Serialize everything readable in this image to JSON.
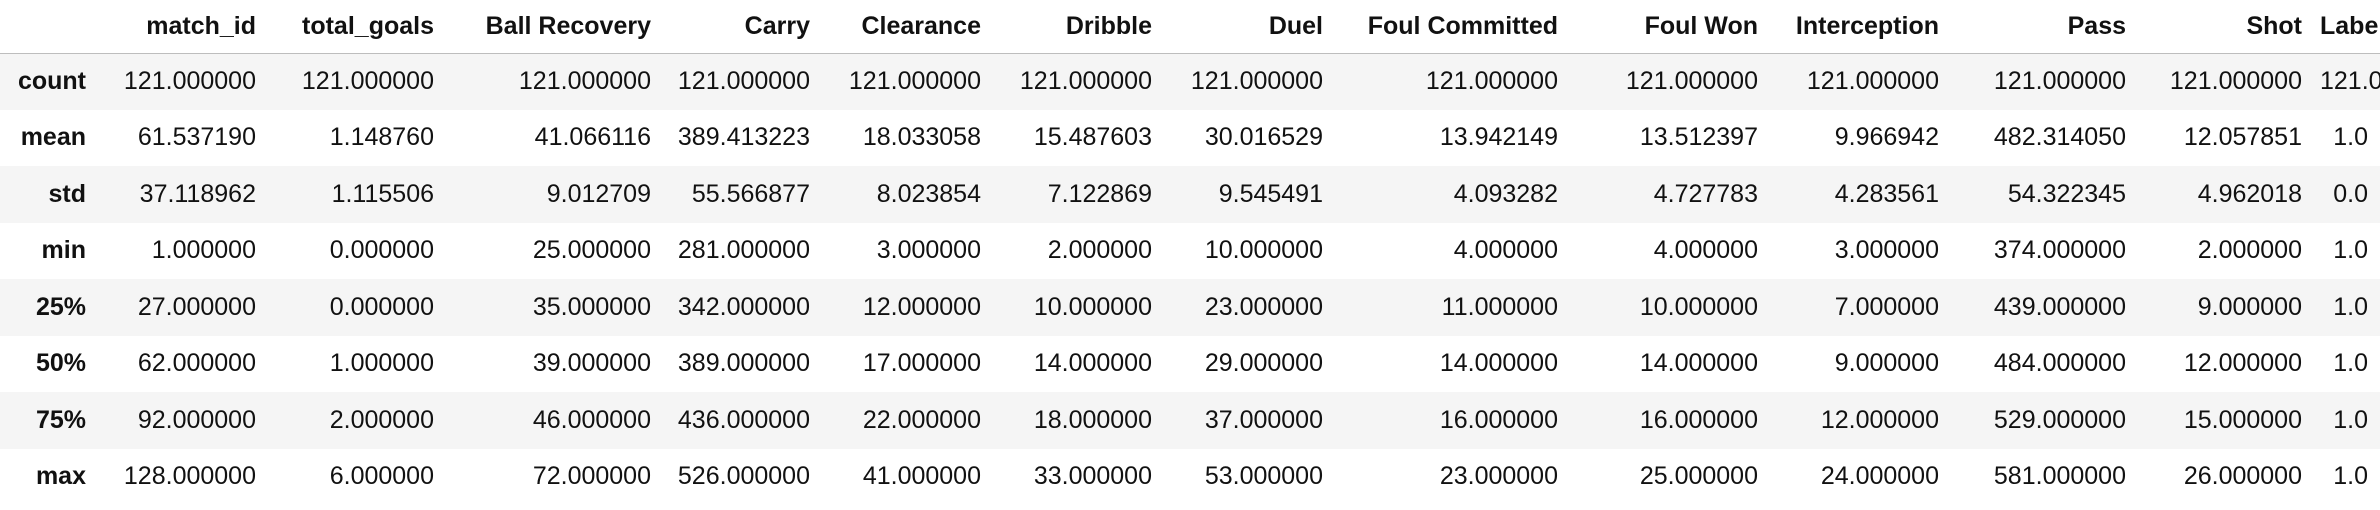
{
  "table": {
    "columns": [
      "match_id",
      "total_goals",
      "Ball Recovery",
      "Carry",
      "Clearance",
      "Dribble",
      "Duel",
      "Foul Committed",
      "Foul Won",
      "Interception",
      "Pass",
      "Shot",
      "Labels"
    ],
    "rows": [
      {
        "label": "count",
        "values": [
          "121.000000",
          "121.000000",
          "121.000000",
          "121.000000",
          "121.000000",
          "121.000000",
          "121.000000",
          "121.000000",
          "121.000000",
          "121.000000",
          "121.000000",
          "121.000000",
          "121.0"
        ]
      },
      {
        "label": "mean",
        "values": [
          "61.537190",
          "1.148760",
          "41.066116",
          "389.413223",
          "18.033058",
          "15.487603",
          "30.016529",
          "13.942149",
          "13.512397",
          "9.966942",
          "482.314050",
          "12.057851",
          "1.0"
        ]
      },
      {
        "label": "std",
        "values": [
          "37.118962",
          "1.115506",
          "9.012709",
          "55.566877",
          "8.023854",
          "7.122869",
          "9.545491",
          "4.093282",
          "4.727783",
          "4.283561",
          "54.322345",
          "4.962018",
          "0.0"
        ]
      },
      {
        "label": "min",
        "values": [
          "1.000000",
          "0.000000",
          "25.000000",
          "281.000000",
          "3.000000",
          "2.000000",
          "10.000000",
          "4.000000",
          "4.000000",
          "3.000000",
          "374.000000",
          "2.000000",
          "1.0"
        ]
      },
      {
        "label": "25%",
        "values": [
          "27.000000",
          "0.000000",
          "35.000000",
          "342.000000",
          "12.000000",
          "10.000000",
          "23.000000",
          "11.000000",
          "10.000000",
          "7.000000",
          "439.000000",
          "9.000000",
          "1.0"
        ]
      },
      {
        "label": "50%",
        "values": [
          "62.000000",
          "1.000000",
          "39.000000",
          "389.000000",
          "17.000000",
          "14.000000",
          "29.000000",
          "14.000000",
          "14.000000",
          "9.000000",
          "484.000000",
          "12.000000",
          "1.0"
        ]
      },
      {
        "label": "75%",
        "values": [
          "92.000000",
          "2.000000",
          "46.000000",
          "436.000000",
          "22.000000",
          "18.000000",
          "37.000000",
          "16.000000",
          "16.000000",
          "12.000000",
          "529.000000",
          "15.000000",
          "1.0"
        ]
      },
      {
        "label": "max",
        "values": [
          "128.000000",
          "6.000000",
          "72.000000",
          "526.000000",
          "41.000000",
          "33.000000",
          "53.000000",
          "23.000000",
          "25.000000",
          "24.000000",
          "581.000000",
          "26.000000",
          "1.0"
        ]
      }
    ]
  }
}
